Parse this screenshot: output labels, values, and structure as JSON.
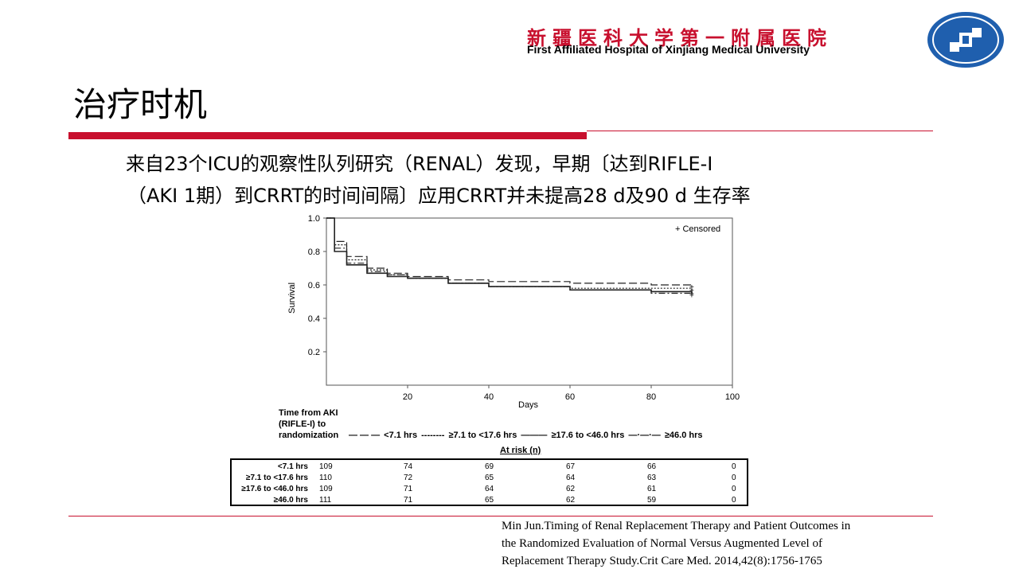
{
  "header": {
    "hospital_cn": "新疆医科大学第一附属医院",
    "hospital_en": "First Affiliated Hospital of Xinjiang Medical University",
    "brand_color": "#c8102e"
  },
  "slide": {
    "title": "治疗时机",
    "body_line1": "来自23个ICU的观察性队列研究（RENAL）发现，早期〔达到RIFLE-I",
    "body_line2": "（AKI 1期）到CRRT的时间间隔〕应用CRRT并未提高28 d及90 d 生存率"
  },
  "chart_data": {
    "type": "line",
    "title": "",
    "xlabel": "Days",
    "ylabel": "Survival",
    "xlim": [
      0,
      100
    ],
    "ylim": [
      0.0,
      1.0
    ],
    "xticks": [
      "20",
      "40",
      "60",
      "80",
      "100"
    ],
    "yticks": [
      "0.2",
      "0.4",
      "0.6",
      "0.8",
      "1.0"
    ],
    "annotation": "+ Censored",
    "legend_title": "Time from AKI (RIFLE-I) to randomization",
    "series": [
      {
        "name": "<7.1 hrs",
        "style": "long-dash",
        "x": [
          0,
          2,
          5,
          10,
          15,
          20,
          30,
          40,
          60,
          80,
          90
        ],
        "y": [
          1.0,
          0.86,
          0.77,
          0.7,
          0.67,
          0.65,
          0.63,
          0.62,
          0.61,
          0.6,
          0.59
        ]
      },
      {
        "name": "≥7.1 to <17.6 hrs",
        "style": "dotted",
        "x": [
          0,
          2,
          5,
          10,
          15,
          20,
          30,
          40,
          60,
          80,
          90
        ],
        "y": [
          1.0,
          0.84,
          0.75,
          0.69,
          0.66,
          0.64,
          0.61,
          0.59,
          0.58,
          0.58,
          0.57
        ]
      },
      {
        "name": "≥17.6 to <46.0 hrs",
        "style": "solid",
        "x": [
          0,
          2,
          5,
          10,
          15,
          20,
          30,
          40,
          60,
          80,
          90
        ],
        "y": [
          1.0,
          0.8,
          0.72,
          0.67,
          0.65,
          0.64,
          0.61,
          0.59,
          0.57,
          0.56,
          0.55
        ]
      },
      {
        "name": "≥46.0 hrs",
        "style": "dash-dot",
        "x": [
          0,
          2,
          5,
          10,
          15,
          20,
          30,
          40,
          60,
          80,
          90
        ],
        "y": [
          1.0,
          0.82,
          0.73,
          0.68,
          0.66,
          0.64,
          0.61,
          0.59,
          0.57,
          0.55,
          0.54
        ]
      }
    ]
  },
  "at_risk": {
    "title": "At risk (n)",
    "rows": [
      {
        "label": "<7.1 hrs",
        "values": [
          "109",
          "74",
          "69",
          "67",
          "66",
          "0"
        ]
      },
      {
        "label": "≥7.1 to <17.6 hrs",
        "values": [
          "110",
          "72",
          "65",
          "64",
          "63",
          "0"
        ]
      },
      {
        "label": "≥17.6 to <46.0 hrs",
        "values": [
          "109",
          "71",
          "64",
          "62",
          "61",
          "0"
        ]
      },
      {
        "label": "≥46.0 hrs",
        "values": [
          "111",
          "71",
          "65",
          "62",
          "59",
          "0"
        ]
      }
    ]
  },
  "citation": {
    "line1": "Min Jun.Timing of Renal Replacement Therapy and Patient Outcomes in",
    "line2": "the Randomized Evaluation of Normal Versus Augmented Level of",
    "line3": "Replacement Therapy Study.Crit Care Med. 2014,42(8):1756-1765"
  }
}
